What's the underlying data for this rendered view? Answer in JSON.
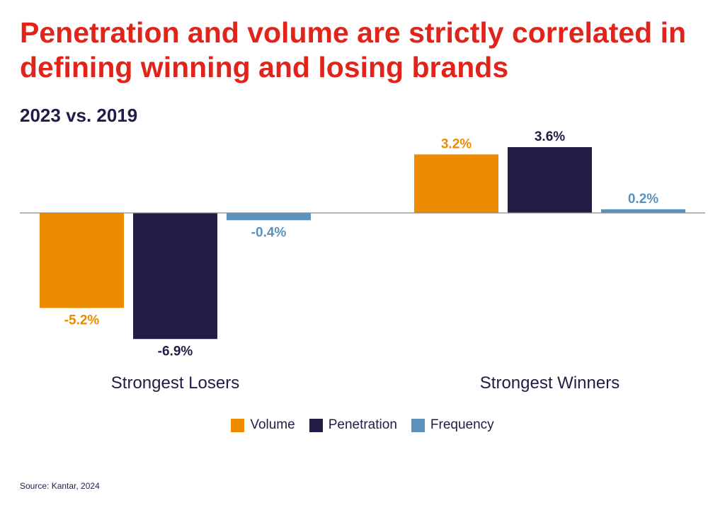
{
  "title": "Penetration and volume are strictly correlated in defining winning and losing brands",
  "subtitle": "2023 vs. 2019",
  "source": "Source: Kantar, 2024",
  "chart_data": {
    "type": "bar",
    "categories": [
      "Strongest Losers",
      "Strongest Winners"
    ],
    "series": [
      {
        "name": "Volume",
        "color": "#ec8b00",
        "values": [
          -5.2,
          3.2
        ],
        "labels": [
          "-5.2%",
          "3.2%"
        ]
      },
      {
        "name": "Penetration",
        "color": "#221c46",
        "values": [
          -6.9,
          3.6
        ],
        "labels": [
          "-6.9%",
          "3.6%"
        ]
      },
      {
        "name": "Frequency",
        "color": "#5a92bb",
        "values": [
          -0.4,
          0.2
        ],
        "labels": [
          "-0.4%",
          "0.2%"
        ]
      }
    ],
    "ylim": [
      -6.9,
      3.6
    ],
    "legend_position": "bottom",
    "grid": false
  }
}
